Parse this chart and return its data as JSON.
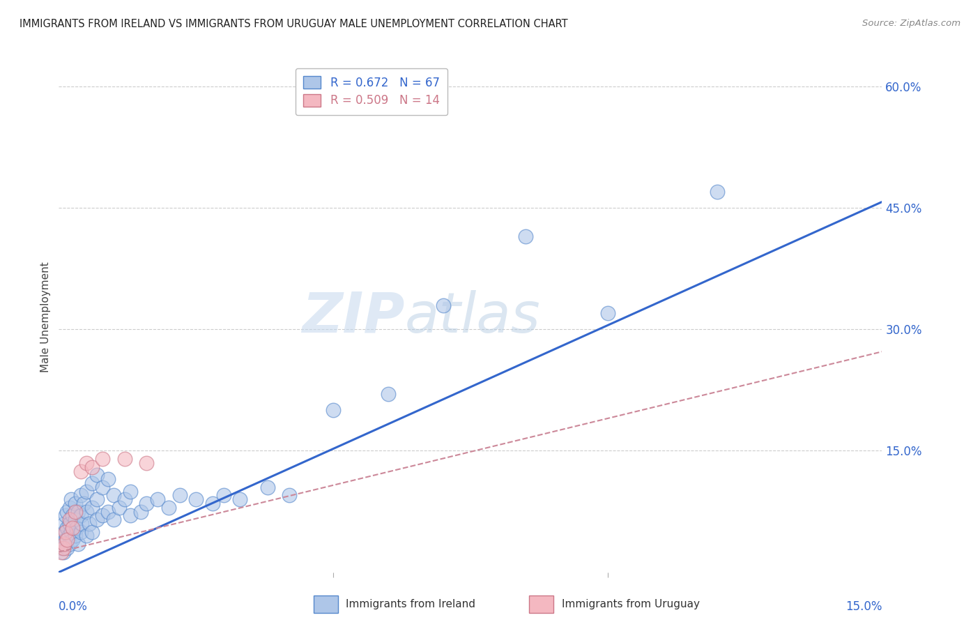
{
  "title": "IMMIGRANTS FROM IRELAND VS IMMIGRANTS FROM URUGUAY MALE UNEMPLOYMENT CORRELATION CHART",
  "source": "Source: ZipAtlas.com",
  "ylabel": "Male Unemployment",
  "x_min": 0.0,
  "x_max": 0.15,
  "y_min": 0.0,
  "y_max": 0.63,
  "y_ticks": [
    0.15,
    0.3,
    0.45,
    0.6
  ],
  "y_tick_labels": [
    "15.0%",
    "30.0%",
    "45.0%",
    "60.0%"
  ],
  "x_ticks": [
    0.0,
    0.05,
    0.1,
    0.15
  ],
  "ireland_R": 0.672,
  "ireland_N": 67,
  "uruguay_R": 0.509,
  "uruguay_N": 14,
  "ireland_color": "#aec6e8",
  "uruguay_color": "#f4b8c1",
  "ireland_edge_color": "#5588cc",
  "uruguay_edge_color": "#cc7788",
  "ireland_line_color": "#3366cc",
  "uruguay_line_color": "#cc8899",
  "legend_label_ireland": "Immigrants from Ireland",
  "legend_label_uruguay": "Immigrants from Uruguay",
  "background_color": "#ffffff",
  "grid_color": "#cccccc",
  "watermark_color": "#d0dff0",
  "title_color": "#222222",
  "source_color": "#888888",
  "axis_label_color": "#3366cc",
  "ireland_line_slope": 3.05,
  "ireland_line_intercept": 0.0,
  "uruguay_line_slope": 1.65,
  "uruguay_line_intercept": 0.025,
  "ireland_x": [
    0.0005,
    0.0005,
    0.0008,
    0.001,
    0.001,
    0.001,
    0.0012,
    0.0012,
    0.0015,
    0.0015,
    0.0015,
    0.0018,
    0.002,
    0.002,
    0.002,
    0.0022,
    0.0022,
    0.0025,
    0.0025,
    0.003,
    0.003,
    0.003,
    0.0032,
    0.0035,
    0.0035,
    0.004,
    0.004,
    0.004,
    0.0042,
    0.0045,
    0.005,
    0.005,
    0.005,
    0.0055,
    0.006,
    0.006,
    0.006,
    0.007,
    0.007,
    0.007,
    0.008,
    0.008,
    0.009,
    0.009,
    0.01,
    0.01,
    0.011,
    0.012,
    0.013,
    0.013,
    0.015,
    0.016,
    0.018,
    0.02,
    0.022,
    0.025,
    0.028,
    0.03,
    0.033,
    0.038,
    0.042,
    0.05,
    0.06,
    0.07,
    0.085,
    0.1,
    0.12
  ],
  "ireland_y": [
    0.03,
    0.045,
    0.025,
    0.035,
    0.05,
    0.06,
    0.04,
    0.07,
    0.03,
    0.055,
    0.075,
    0.045,
    0.035,
    0.06,
    0.08,
    0.05,
    0.09,
    0.04,
    0.07,
    0.045,
    0.065,
    0.085,
    0.055,
    0.035,
    0.075,
    0.05,
    0.07,
    0.095,
    0.06,
    0.085,
    0.045,
    0.075,
    0.1,
    0.06,
    0.05,
    0.08,
    0.11,
    0.065,
    0.09,
    0.12,
    0.07,
    0.105,
    0.075,
    0.115,
    0.065,
    0.095,
    0.08,
    0.09,
    0.07,
    0.1,
    0.075,
    0.085,
    0.09,
    0.08,
    0.095,
    0.09,
    0.085,
    0.095,
    0.09,
    0.105,
    0.095,
    0.2,
    0.22,
    0.33,
    0.415,
    0.32,
    0.47
  ],
  "uruguay_x": [
    0.0005,
    0.0008,
    0.001,
    0.0012,
    0.0015,
    0.002,
    0.0025,
    0.003,
    0.004,
    0.005,
    0.006,
    0.008,
    0.012,
    0.016
  ],
  "uruguay_y": [
    0.025,
    0.03,
    0.035,
    0.05,
    0.04,
    0.065,
    0.055,
    0.075,
    0.125,
    0.135,
    0.13,
    0.14,
    0.14,
    0.135
  ]
}
